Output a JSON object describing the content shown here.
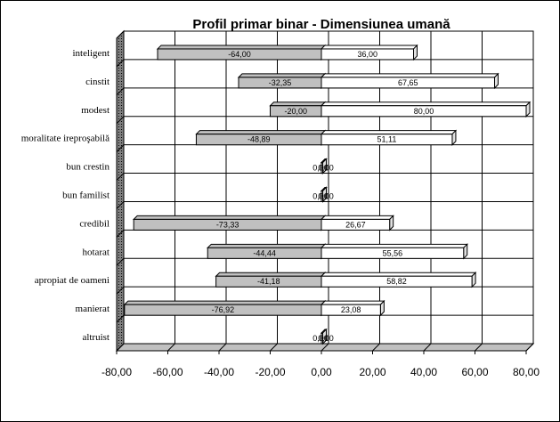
{
  "chart_data": {
    "type": "bar",
    "orientation": "horizontal",
    "title": "Profil primar binar - Dimensiunea umană",
    "categories": [
      "inteligent",
      "cinstit",
      "modest",
      "moralitate ireproşabilă",
      "bun crestin",
      "bun familist",
      "credibil",
      "hotarat",
      "apropiat de oameni",
      "manierat",
      "altruist"
    ],
    "series": [
      {
        "values": [
          -64,
          -32.35,
          -20,
          -48.89,
          0,
          0,
          -73.33,
          -44.44,
          -41.18,
          -76.92,
          0
        ],
        "labels": [
          "-64,00",
          "-32,35",
          "-20,00",
          "-48,89",
          "0,00",
          "0,00",
          "-73,33",
          "-44,44",
          "-41,18",
          "-76,92",
          "0,00"
        ],
        "color": "#c0c0c0"
      },
      {
        "values": [
          36,
          67.65,
          80,
          51.11,
          0,
          0,
          26.67,
          55.56,
          58.82,
          23.08,
          0
        ],
        "labels": [
          "36,00",
          "67,65",
          "80,00",
          "51,11",
          "0,00",
          "0,00",
          "26,67",
          "55,56",
          "58,82",
          "23,08",
          "0,00"
        ],
        "color": "#ffffff"
      }
    ],
    "xlim": [
      -80,
      80
    ],
    "xticks": [
      -80,
      -60,
      -40,
      -20,
      0,
      20,
      40,
      60,
      80
    ],
    "xtick_labels": [
      "-80,00",
      "-60,00",
      "-40,00",
      "-20,00",
      "0,00",
      "20,00",
      "40,00",
      "60,00",
      "80,00"
    ],
    "grid": true,
    "legend": "none"
  }
}
